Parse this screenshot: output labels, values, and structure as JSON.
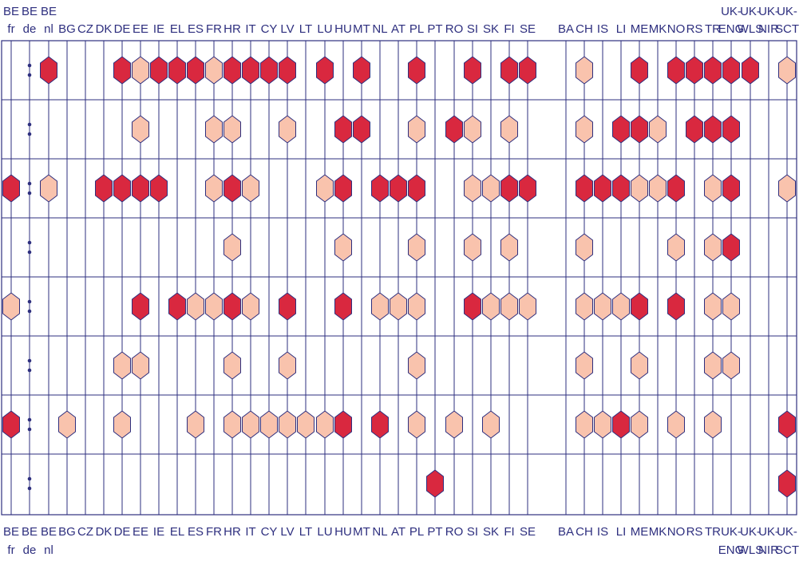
{
  "columns": [
    {
      "code": "BE-fr",
      "line1": "BE",
      "line2": "fr"
    },
    {
      "code": "BE-de",
      "line1": "BE",
      "line2": "de"
    },
    {
      "code": "BE-nl",
      "line1": "BE",
      "line2": "nl"
    },
    {
      "code": "BG",
      "line1": "",
      "line2": "BG"
    },
    {
      "code": "CZ",
      "line1": "",
      "line2": "CZ"
    },
    {
      "code": "DK",
      "line1": "",
      "line2": "DK"
    },
    {
      "code": "DE",
      "line1": "",
      "line2": "DE"
    },
    {
      "code": "EE",
      "line1": "",
      "line2": "EE"
    },
    {
      "code": "IE",
      "line1": "",
      "line2": "IE"
    },
    {
      "code": "EL",
      "line1": "",
      "line2": "EL"
    },
    {
      "code": "ES",
      "line1": "",
      "line2": "ES"
    },
    {
      "code": "FR",
      "line1": "",
      "line2": "FR"
    },
    {
      "code": "HR",
      "line1": "",
      "line2": "HR"
    },
    {
      "code": "IT",
      "line1": "",
      "line2": "IT"
    },
    {
      "code": "CY",
      "line1": "",
      "line2": "CY"
    },
    {
      "code": "LV",
      "line1": "",
      "line2": "LV"
    },
    {
      "code": "LT",
      "line1": "",
      "line2": "LT"
    },
    {
      "code": "LU",
      "line1": "",
      "line2": "LU"
    },
    {
      "code": "HU",
      "line1": "",
      "line2": "HU"
    },
    {
      "code": "MT",
      "line1": "",
      "line2": "MT"
    },
    {
      "code": "NL",
      "line1": "",
      "line2": "NL"
    },
    {
      "code": "AT",
      "line1": "",
      "line2": "AT"
    },
    {
      "code": "PL",
      "line1": "",
      "line2": "PL"
    },
    {
      "code": "PT",
      "line1": "",
      "line2": "PT"
    },
    {
      "code": "RO",
      "line1": "",
      "line2": "RO"
    },
    {
      "code": "SI",
      "line1": "",
      "line2": "SI"
    },
    {
      "code": "SK",
      "line1": "",
      "line2": "SK"
    },
    {
      "code": "FI",
      "line1": "",
      "line2": "FI"
    },
    {
      "code": "SE",
      "line1": "",
      "line2": "SE"
    },
    {
      "code": "BA",
      "line1": "",
      "line2": "BA"
    },
    {
      "code": "CH",
      "line1": "",
      "line2": "CH"
    },
    {
      "code": "IS",
      "line1": "",
      "line2": "IS"
    },
    {
      "code": "LI",
      "line1": "",
      "line2": "LI"
    },
    {
      "code": "ME",
      "line1": "",
      "line2": "ME"
    },
    {
      "code": "MK",
      "line1": "",
      "line2": "MK"
    },
    {
      "code": "NO",
      "line1": "",
      "line2": "NO"
    },
    {
      "code": "RS",
      "line1": "",
      "line2": "RS"
    },
    {
      "code": "TR",
      "line1": "",
      "line2": "TR"
    },
    {
      "code": "UK-ENG",
      "line1": "UK-",
      "line2": "ENG"
    },
    {
      "code": "UK-WLS",
      "line1": "UK-",
      "line2": "WLS"
    },
    {
      "code": "UK-NIR",
      "line1": "UK-",
      "line2": "NIR"
    },
    {
      "code": "UK-SCT",
      "line1": "UK-",
      "line2": "SCT"
    }
  ],
  "legend_colors": {
    "dark": "#d9283f",
    "light": "#f9c3ad",
    "line": "#2e2f7f"
  },
  "rows": [
    {
      "dotted": "BE-de",
      "marks": {
        "BE-nl": "dark",
        "DE": "dark",
        "EE": "light",
        "IE": "dark",
        "EL": "dark",
        "ES": "dark",
        "FR": "light",
        "HR": "dark",
        "IT": "dark",
        "CY": "dark",
        "LV": "dark",
        "LU": "dark",
        "MT": "dark",
        "PL": "dark",
        "SI": "dark",
        "FI": "dark",
        "SE": "dark",
        "CH": "light",
        "ME": "dark",
        "NO": "dark",
        "RS": "dark",
        "TR": "dark",
        "UK-ENG": "dark",
        "UK-WLS": "dark",
        "UK-SCT": "light"
      }
    },
    {
      "dotted": "BE-de",
      "marks": {
        "EE": "light",
        "FR": "light",
        "HR": "light",
        "LV": "light",
        "HU": "dark",
        "MT": "dark",
        "PL": "light",
        "RO": "dark",
        "SI": "light",
        "FI": "light",
        "CH": "light",
        "LI": "dark",
        "ME": "dark",
        "MK": "light",
        "RS": "dark",
        "TR": "dark",
        "UK-ENG": "dark"
      }
    },
    {
      "dotted": "BE-de",
      "marks": {
        "BE-fr": "dark",
        "BE-nl": "light",
        "DK": "dark",
        "DE": "dark",
        "EE": "dark",
        "IE": "dark",
        "FR": "light",
        "HR": "dark",
        "IT": "light",
        "LU": "light",
        "HU": "dark",
        "NL": "dark",
        "AT": "dark",
        "PL": "dark",
        "SI": "light",
        "SK": "light",
        "FI": "dark",
        "SE": "dark",
        "CH": "dark",
        "IS": "dark",
        "LI": "dark",
        "ME": "light",
        "MK": "light",
        "NO": "dark",
        "TR": "light",
        "UK-ENG": "dark",
        "UK-SCT": "light"
      }
    },
    {
      "dotted": "BE-de",
      "marks": {
        "HR": "light",
        "HU": "light",
        "PL": "light",
        "SI": "light",
        "FI": "light",
        "CH": "light",
        "NO": "light",
        "TR": "light",
        "UK-ENG": "dark"
      }
    },
    {
      "dotted": "BE-de",
      "marks": {
        "BE-fr": "light",
        "EE": "dark",
        "EL": "dark",
        "ES": "light",
        "FR": "light",
        "HR": "dark",
        "IT": "light",
        "LV": "dark",
        "HU": "dark",
        "NL": "light",
        "AT": "light",
        "PL": "light",
        "SI": "dark",
        "SK": "light",
        "FI": "light",
        "SE": "light",
        "CH": "light",
        "IS": "light",
        "LI": "light",
        "ME": "dark",
        "NO": "dark",
        "TR": "light",
        "UK-ENG": "light"
      }
    },
    {
      "dotted": "BE-de",
      "marks": {
        "DE": "light",
        "EE": "light",
        "HR": "light",
        "LV": "light",
        "PL": "light",
        "CH": "light",
        "ME": "light",
        "TR": "light",
        "UK-ENG": "light"
      }
    },
    {
      "dotted": "BE-de",
      "marks": {
        "BE-fr": "dark",
        "BG": "light",
        "DE": "light",
        "ES": "light",
        "HR": "light",
        "IT": "light",
        "CY": "light",
        "LV": "light",
        "LT": "light",
        "LU": "light",
        "HU": "dark",
        "NL": "dark",
        "PL": "light",
        "RO": "light",
        "SK": "light",
        "CH": "light",
        "IS": "light",
        "LI": "dark",
        "ME": "light",
        "NO": "light",
        "TR": "light",
        "UK-SCT": "dark"
      }
    },
    {
      "dotted": "BE-de",
      "marks": {
        "PT": "dark",
        "UK-SCT": "dark"
      }
    }
  ]
}
